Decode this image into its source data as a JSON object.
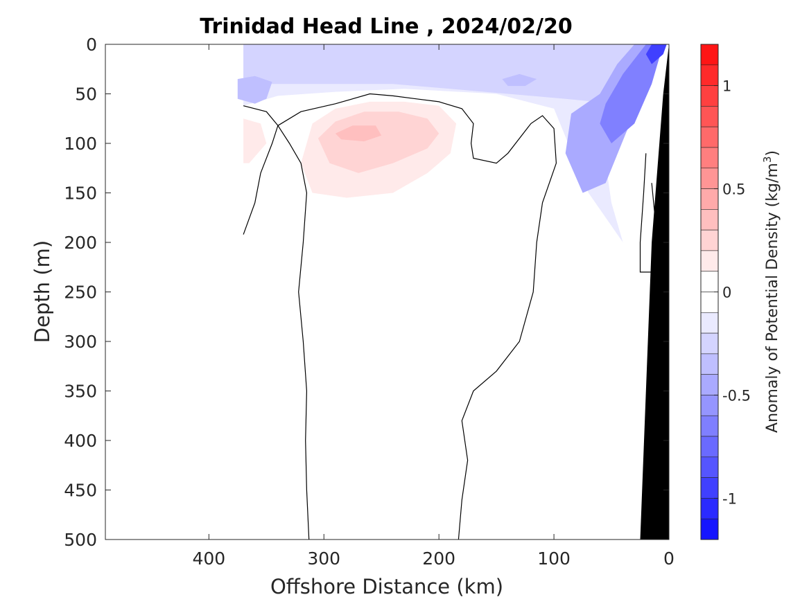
{
  "chart_data": {
    "type": "contour",
    "title": "Trinidad Head Line , 2024/02/20",
    "xlabel": "Offshore Distance (km)",
    "ylabel": "Depth (m)",
    "x_reversed": true,
    "y_reversed": true,
    "xlim": [
      0,
      490
    ],
    "ylim": [
      0,
      500
    ],
    "xticks": [
      400,
      300,
      200,
      100,
      0
    ],
    "yticks": [
      0,
      50,
      100,
      150,
      200,
      250,
      300,
      350,
      400,
      450,
      500
    ],
    "colorbar": {
      "label": "Anomaly of Potential Density (kg/m",
      "label_superscript": "3",
      "label_close": ")",
      "range": [
        -1.2,
        1.2
      ],
      "step": 0.1,
      "ticks": [
        {
          "value": 1,
          "label": "1"
        },
        {
          "value": 0.5,
          "label": "0.5"
        },
        {
          "value": 0,
          "label": "0"
        },
        {
          "value": -0.5,
          "label": "-0.5"
        },
        {
          "value": -1,
          "label": "-1"
        }
      ],
      "colormap": "blue-white-red"
    },
    "fill_regions": [
      {
        "name": "negative-anomaly-upper-layer",
        "level": -0.1,
        "polygon": [
          [
            370,
            0
          ],
          [
            20,
            0
          ],
          [
            30,
            20
          ],
          [
            45,
            60
          ],
          [
            55,
            120
          ],
          [
            50,
            160
          ],
          [
            40,
            200
          ],
          [
            70,
            150
          ],
          [
            100,
            65
          ],
          [
            150,
            50
          ],
          [
            230,
            45
          ],
          [
            290,
            48
          ],
          [
            340,
            52
          ],
          [
            370,
            62
          ]
        ]
      },
      {
        "name": "negative-anomaly-shelf",
        "level": -0.2,
        "polygon": [
          [
            370,
            0
          ],
          [
            20,
            0
          ],
          [
            40,
            45
          ],
          [
            45,
            60
          ],
          [
            90,
            55
          ],
          [
            160,
            48
          ],
          [
            240,
            40
          ],
          [
            300,
            40
          ],
          [
            340,
            40
          ],
          [
            370,
            40
          ]
        ]
      },
      {
        "name": "negative-anomaly-patch-350",
        "level": -0.3,
        "polygon": [
          [
            375,
            35
          ],
          [
            360,
            32
          ],
          [
            345,
            38
          ],
          [
            350,
            55
          ],
          [
            360,
            60
          ],
          [
            375,
            55
          ]
        ]
      },
      {
        "name": "negative-anomaly-patch-140",
        "level": -0.3,
        "polygon": [
          [
            145,
            35
          ],
          [
            130,
            30
          ],
          [
            115,
            35
          ],
          [
            125,
            42
          ],
          [
            140,
            42
          ]
        ]
      },
      {
        "name": "negative-anomaly-coast-mid",
        "level": -0.4,
        "polygon": [
          [
            30,
            0
          ],
          [
            10,
            0
          ],
          [
            20,
            40
          ],
          [
            55,
            140
          ],
          [
            75,
            150
          ],
          [
            90,
            110
          ],
          [
            85,
            70
          ],
          [
            60,
            50
          ],
          [
            45,
            20
          ]
        ]
      },
      {
        "name": "negative-anomaly-coast-deep",
        "level": -0.6,
        "polygon": [
          [
            20,
            0
          ],
          [
            5,
            0
          ],
          [
            15,
            40
          ],
          [
            30,
            80
          ],
          [
            50,
            100
          ],
          [
            60,
            80
          ],
          [
            55,
            60
          ],
          [
            40,
            30
          ]
        ]
      },
      {
        "name": "negative-anomaly-coast-core",
        "level": -0.9,
        "polygon": [
          [
            15,
            0
          ],
          [
            2,
            0
          ],
          [
            5,
            10
          ],
          [
            15,
            20
          ],
          [
            20,
            10
          ]
        ]
      },
      {
        "name": "positive-anomaly-lens",
        "level": 0.1,
        "polygon": [
          [
            320,
            120
          ],
          [
            310,
            80
          ],
          [
            290,
            65
          ],
          [
            260,
            58
          ],
          [
            230,
            58
          ],
          [
            200,
            62
          ],
          [
            185,
            80
          ],
          [
            190,
            110
          ],
          [
            210,
            130
          ],
          [
            240,
            150
          ],
          [
            280,
            155
          ],
          [
            310,
            150
          ]
        ]
      },
      {
        "name": "positive-anomaly-lens-core",
        "level": 0.2,
        "polygon": [
          [
            305,
            95
          ],
          [
            290,
            78
          ],
          [
            265,
            68
          ],
          [
            235,
            68
          ],
          [
            210,
            75
          ],
          [
            200,
            90
          ],
          [
            210,
            105
          ],
          [
            240,
            120
          ],
          [
            270,
            130
          ],
          [
            295,
            120
          ]
        ]
      },
      {
        "name": "positive-anomaly-lens-peak",
        "level": 0.3,
        "polygon": [
          [
            290,
            90
          ],
          [
            275,
            82
          ],
          [
            255,
            82
          ],
          [
            250,
            92
          ],
          [
            265,
            98
          ],
          [
            285,
            96
          ]
        ]
      },
      {
        "name": "positive-anomaly-west",
        "level": 0.1,
        "polygon": [
          [
            370,
            75
          ],
          [
            355,
            80
          ],
          [
            350,
            100
          ],
          [
            365,
            120
          ],
          [
            370,
            120
          ]
        ]
      }
    ],
    "zero_contours": [
      {
        "name": "zero-contour-west",
        "points": [
          [
            370,
            62
          ],
          [
            350,
            68
          ],
          [
            340,
            82
          ],
          [
            345,
            100
          ],
          [
            355,
            130
          ],
          [
            360,
            160
          ],
          [
            370,
            192
          ]
        ]
      },
      {
        "name": "zero-contour-lens",
        "points": [
          [
            340,
            82
          ],
          [
            330,
            100
          ],
          [
            320,
            120
          ],
          [
            315,
            150
          ],
          [
            318,
            200
          ],
          [
            322,
            250
          ],
          [
            318,
            300
          ],
          [
            315,
            350
          ],
          [
            316,
            400
          ],
          [
            315,
            450
          ],
          [
            313,
            500
          ]
        ]
      },
      {
        "name": "zero-contour-lens-top",
        "points": [
          [
            340,
            82
          ],
          [
            320,
            68
          ],
          [
            290,
            60
          ],
          [
            260,
            50
          ],
          [
            240,
            52
          ],
          [
            220,
            55
          ],
          [
            200,
            58
          ],
          [
            180,
            65
          ],
          [
            170,
            80
          ],
          [
            172,
            100
          ],
          [
            170,
            115
          ],
          [
            150,
            120
          ],
          [
            140,
            110
          ],
          [
            120,
            80
          ],
          [
            110,
            72
          ],
          [
            100,
            85
          ],
          [
            98,
            120
          ],
          [
            110,
            160
          ],
          [
            115,
            200
          ],
          [
            118,
            250
          ],
          [
            130,
            300
          ],
          [
            150,
            330
          ],
          [
            170,
            350
          ],
          [
            180,
            380
          ],
          [
            175,
            420
          ],
          [
            180,
            460
          ],
          [
            183,
            500
          ]
        ]
      },
      {
        "name": "zero-contour-coast",
        "points": [
          [
            20,
            110
          ],
          [
            22,
            150
          ],
          [
            25,
            200
          ],
          [
            25,
            230
          ],
          [
            15,
            230
          ],
          [
            10,
            200
          ],
          [
            15,
            140
          ]
        ]
      }
    ],
    "bathymetry": {
      "name": "seafloor",
      "points": [
        [
          0,
          0
        ],
        [
          0,
          500
        ],
        [
          25,
          500
        ],
        [
          15,
          200
        ],
        [
          5,
          50
        ]
      ]
    }
  }
}
